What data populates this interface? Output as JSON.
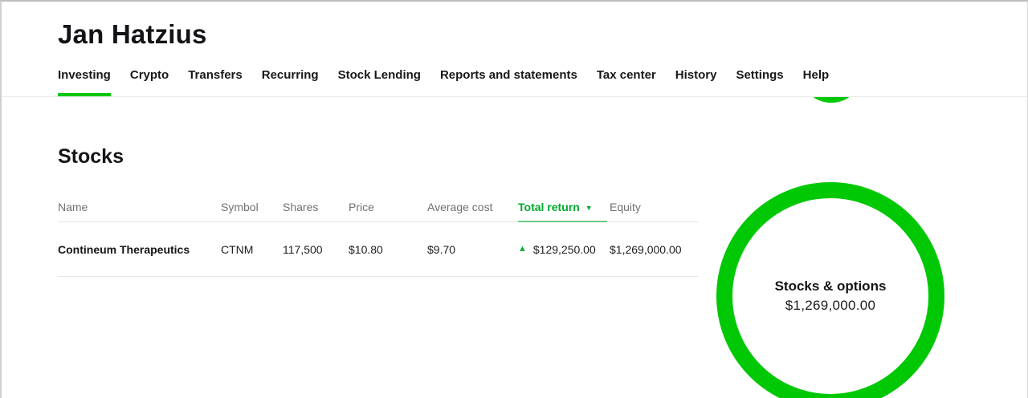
{
  "header": {
    "title": "Jan Hatzius",
    "nav": {
      "items": [
        {
          "label": "Investing",
          "active": true
        },
        {
          "label": "Crypto",
          "active": false
        },
        {
          "label": "Transfers",
          "active": false
        },
        {
          "label": "Recurring",
          "active": false
        },
        {
          "label": "Stock Lending",
          "active": false
        },
        {
          "label": "Reports and statements",
          "active": false
        },
        {
          "label": "Tax center",
          "active": false
        },
        {
          "label": "History",
          "active": false
        },
        {
          "label": "Settings",
          "active": false
        },
        {
          "label": "Help",
          "active": false
        }
      ]
    }
  },
  "main": {
    "section_heading": "Stocks",
    "table": {
      "columns": [
        "Name",
        "Symbol",
        "Shares",
        "Price",
        "Average cost",
        "Total return",
        "Equity"
      ],
      "sorted_by": "Total return",
      "sort_direction": "desc",
      "rows": [
        {
          "name": "Contineum Therapeutics",
          "symbol": "CTNM",
          "shares": "117,500",
          "price": "$10.80",
          "average_cost": "$9.70",
          "total_return": "$129,250.00",
          "total_return_direction": "up",
          "equity": "$1,269,000.00"
        }
      ]
    },
    "donut": {
      "label": "Stocks & options",
      "value": "$1,269,000.00"
    }
  },
  "chart_data": {
    "type": "pie",
    "title": "Stocks & options",
    "slices": [
      {
        "label": "Stocks & options",
        "value": 1269000.0,
        "fraction": 1.0,
        "color": "#00C805"
      }
    ],
    "center_label": "Stocks & options",
    "center_value": "$1,269,000.00"
  },
  "icons": {
    "sort_caret_down": "▼",
    "return_up_triangle": "▲"
  },
  "colors": {
    "brand_green": "#00C805",
    "green_text": "#00A82D",
    "text_primary": "#17181a",
    "text_secondary": "#6e7074",
    "border": "#e6e6e6"
  }
}
